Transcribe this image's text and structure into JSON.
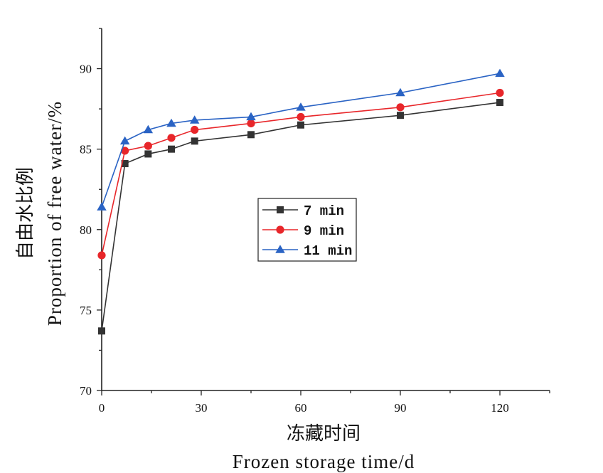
{
  "chart_data": {
    "type": "line",
    "xlabel_cn": "冻藏时间",
    "xlabel_en": "Frozen storage time/d",
    "ylabel_cn": "自由水比例",
    "ylabel_en": "Proportion of free water/%",
    "xlim": [
      0,
      135
    ],
    "ylim": [
      70,
      92.5
    ],
    "x_ticks": [
      0,
      30,
      60,
      90,
      120
    ],
    "y_ticks": [
      70,
      75,
      80,
      85,
      90
    ],
    "grid": false,
    "legend_position": "center",
    "x": [
      0,
      7,
      14,
      21,
      28,
      45,
      60,
      90,
      120
    ],
    "series": [
      {
        "name": "7 min",
        "marker": "square",
        "color": "#333333",
        "values": [
          73.7,
          84.1,
          84.7,
          85.0,
          85.5,
          85.9,
          86.5,
          87.1,
          87.9
        ]
      },
      {
        "name": "9 min",
        "marker": "circle",
        "color": "#e8262a",
        "values": [
          78.4,
          84.9,
          85.2,
          85.7,
          86.2,
          86.6,
          87.0,
          87.6,
          88.5
        ]
      },
      {
        "name": "11 min",
        "marker": "triangle",
        "color": "#2a63c4",
        "values": [
          81.4,
          85.5,
          86.2,
          86.6,
          86.8,
          87.0,
          87.6,
          88.5,
          89.7
        ]
      }
    ]
  }
}
